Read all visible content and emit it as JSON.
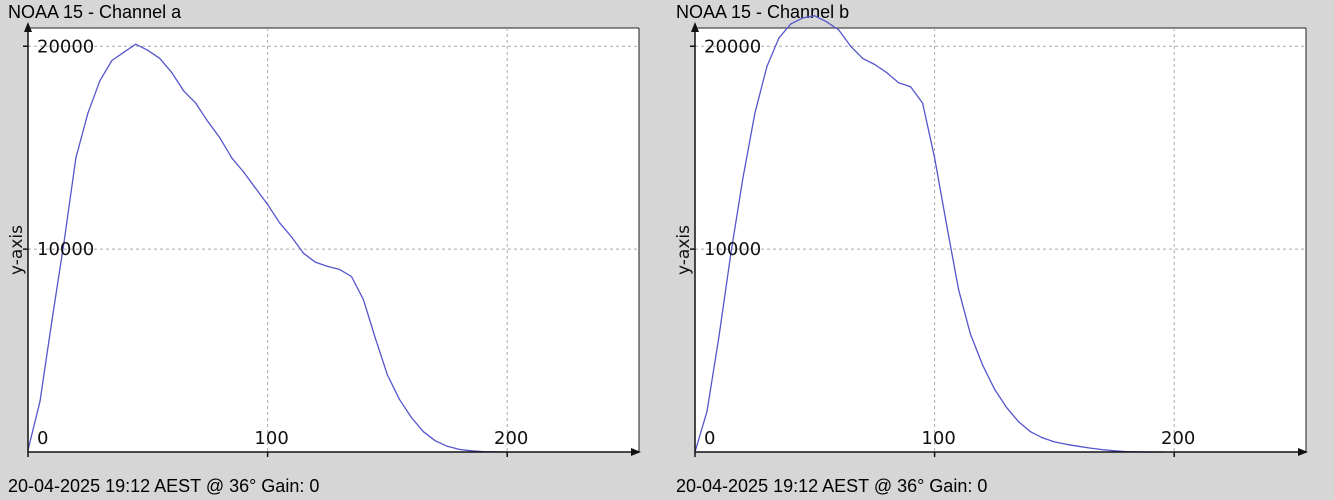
{
  "panels": [
    {
      "title": "NOAA 15 - Channel a",
      "footer": "20-04-2025 19:12 AEST @ 36° Gain: 0",
      "ylabel": "y-axis"
    },
    {
      "title": "NOAA 15 - Channel b",
      "footer": "20-04-2025 19:12 AEST @ 36° Gain: 0",
      "ylabel": "y-axis"
    }
  ],
  "colors": {
    "background": "#d6d6d6",
    "plot_bg": "#ffffff",
    "line": "#5555cc",
    "grid": "#aaaaaa"
  },
  "chart_data": [
    {
      "type": "line",
      "title": "NOAA 15 - Channel a",
      "xlabel": "",
      "ylabel": "y-axis",
      "xlim": [
        0,
        255
      ],
      "ylim": [
        0,
        20900
      ],
      "xticks": [
        0,
        100,
        200
      ],
      "yticks": [
        10000,
        20000
      ],
      "grid": true,
      "series": [
        {
          "x": [
            0,
            5,
            10,
            15,
            20,
            25,
            30,
            35,
            40,
            45,
            50,
            55,
            60,
            65,
            70,
            75,
            80,
            85,
            90,
            95,
            100,
            105,
            110,
            115,
            120,
            125,
            130,
            135,
            140,
            145,
            150,
            155,
            160,
            165,
            170,
            175,
            180,
            185,
            190,
            195,
            200
          ],
          "y": [
            100,
            2500,
            6500,
            10300,
            14500,
            16700,
            18300,
            19300,
            19700,
            20100,
            19800,
            19400,
            18700,
            17800,
            17200,
            16300,
            15500,
            14500,
            13800,
            13000,
            12200,
            11300,
            10600,
            9800,
            9350,
            9150,
            9000,
            8650,
            7500,
            5600,
            3800,
            2600,
            1700,
            1000,
            550,
            280,
            130,
            60,
            20,
            5,
            0
          ]
        }
      ]
    },
    {
      "type": "line",
      "title": "NOAA 15 - Channel b",
      "xlabel": "",
      "ylabel": "y-axis",
      "xlim": [
        0,
        255
      ],
      "ylim": [
        0,
        20900
      ],
      "xticks": [
        0,
        100,
        200
      ],
      "yticks": [
        10000,
        20000
      ],
      "grid": true,
      "series": [
        {
          "x": [
            0,
            5,
            10,
            15,
            20,
            25,
            30,
            35,
            40,
            45,
            50,
            55,
            60,
            65,
            70,
            75,
            80,
            85,
            90,
            95,
            100,
            105,
            110,
            115,
            120,
            125,
            130,
            135,
            140,
            145,
            150,
            155,
            160,
            165,
            170,
            175,
            180,
            185,
            190,
            195
          ],
          "y": [
            0,
            2000,
            5700,
            9800,
            13500,
            16700,
            19000,
            20400,
            21100,
            21400,
            21500,
            21200,
            20800,
            20000,
            19400,
            19100,
            18700,
            18200,
            18000,
            17200,
            14500,
            11200,
            8000,
            5800,
            4300,
            3100,
            2200,
            1500,
            1000,
            700,
            500,
            380,
            280,
            190,
            120,
            60,
            20,
            5,
            0,
            0
          ]
        }
      ]
    }
  ]
}
